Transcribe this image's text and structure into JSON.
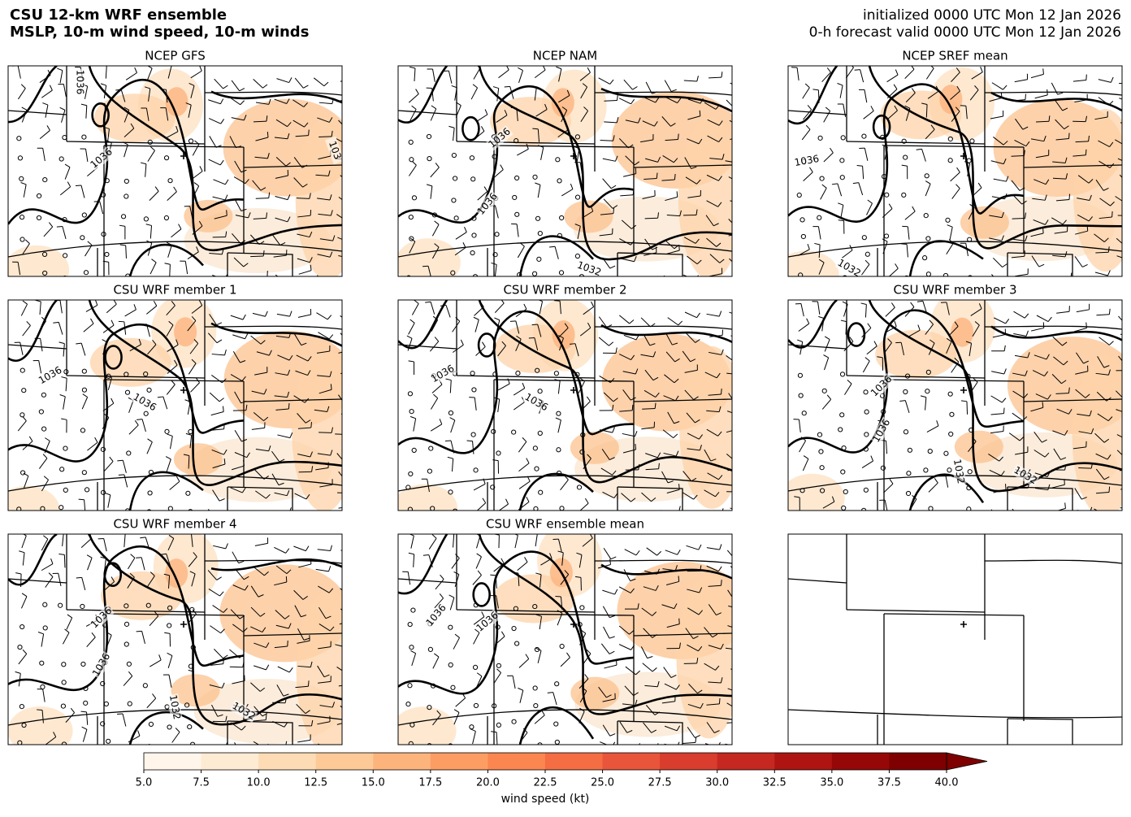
{
  "header": {
    "title_lines": [
      "CSU 12-km WRF ensemble",
      "MSLP, 10-m wind speed, 10-m winds"
    ],
    "init": "initialized 0000 UTC Mon 12 Jan 2026",
    "valid": "0-h forecast valid 0000 UTC Mon 12 Jan 2026"
  },
  "panels": [
    {
      "title": "NCEP GFS",
      "contour_labels": [
        "1036",
        "1036",
        "103"
      ]
    },
    {
      "title": "NCEP NAM",
      "contour_labels": [
        "1036",
        "1036",
        "1032"
      ]
    },
    {
      "title": "NCEP SREF mean",
      "contour_labels": [
        "1036",
        "1032"
      ]
    },
    {
      "title": "CSU WRF member 1",
      "contour_labels": [
        "1036",
        "1036"
      ]
    },
    {
      "title": "CSU WRF member 2",
      "contour_labels": [
        "1036",
        "1036"
      ]
    },
    {
      "title": "CSU WRF member 3",
      "contour_labels": [
        "1036",
        "1036",
        "1032",
        "1032"
      ]
    },
    {
      "title": "CSU WRF member 4",
      "contour_labels": [
        "1036",
        "1036",
        "1032",
        "1032"
      ]
    },
    {
      "title": "CSU WRF ensemble mean",
      "contour_labels": [
        "1036",
        "1036"
      ]
    }
  ],
  "colorbar": {
    "label": "wind speed (kt)",
    "lim": [
      5,
      40
    ],
    "extend": "max",
    "ticks": [
      {
        "value": 5,
        "label": "5.0"
      },
      {
        "value": 7.5,
        "label": "7.5"
      },
      {
        "value": 10,
        "label": "10.0"
      },
      {
        "value": 12.5,
        "label": "12.5"
      },
      {
        "value": 15,
        "label": "15.0"
      },
      {
        "value": 17.5,
        "label": "17.5"
      },
      {
        "value": 20,
        "label": "20.0"
      },
      {
        "value": 22.5,
        "label": "22.5"
      },
      {
        "value": 25,
        "label": "25.0"
      },
      {
        "value": 27.5,
        "label": "27.5"
      },
      {
        "value": 30,
        "label": "30.0"
      },
      {
        "value": 32.5,
        "label": "32.5"
      },
      {
        "value": 35,
        "label": "35.0"
      },
      {
        "value": 37.5,
        "label": "37.5"
      },
      {
        "value": 40,
        "label": "40.0"
      }
    ],
    "colors": [
      "#fff5eb",
      "#feebd3",
      "#fddcb5",
      "#fdca97",
      "#fdb47c",
      "#fc9d64",
      "#fb8650",
      "#f46d43",
      "#e8553a",
      "#d83d2d",
      "#c52820",
      "#ae1512",
      "#960808",
      "#7f0000"
    ]
  }
}
